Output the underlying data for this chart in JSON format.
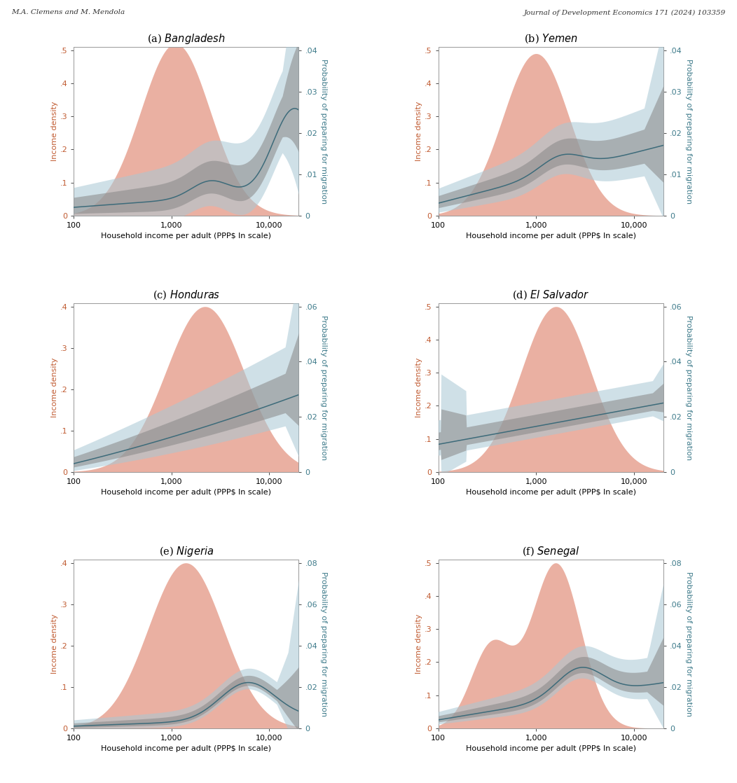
{
  "header_left": "M.A. Clemens and M. Mendola",
  "header_right": "Journal of Development Economics 171 (2024) 103359",
  "panels": [
    {
      "label": "(a)",
      "country": "Bangladesh",
      "yleft_max": 0.5,
      "yright_max": 0.04,
      "yleft_ticks": [
        0,
        0.1,
        0.2,
        0.3,
        0.4,
        0.5
      ],
      "yright_ticks": [
        0,
        0.01,
        0.02,
        0.03,
        0.04
      ],
      "density_shape": "bangladesh",
      "prob_shape": "bangladesh"
    },
    {
      "label": "(b)",
      "country": "Yemen",
      "yleft_max": 0.5,
      "yright_max": 0.04,
      "yleft_ticks": [
        0,
        0.1,
        0.2,
        0.3,
        0.4,
        0.5
      ],
      "yright_ticks": [
        0,
        0.01,
        0.02,
        0.03,
        0.04
      ],
      "density_shape": "yemen",
      "prob_shape": "yemen"
    },
    {
      "label": "(c)",
      "country": "Honduras",
      "yleft_max": 0.4,
      "yright_max": 0.06,
      "yleft_ticks": [
        0,
        0.1,
        0.2,
        0.3,
        0.4
      ],
      "yright_ticks": [
        0,
        0.02,
        0.04,
        0.06
      ],
      "density_shape": "honduras",
      "prob_shape": "honduras"
    },
    {
      "label": "(d)",
      "country": "El Salvador",
      "yleft_max": 0.5,
      "yright_max": 0.06,
      "yleft_ticks": [
        0,
        0.1,
        0.2,
        0.3,
        0.4,
        0.5
      ],
      "yright_ticks": [
        0,
        0.02,
        0.04,
        0.06
      ],
      "density_shape": "elsalvador",
      "prob_shape": "elsalvador"
    },
    {
      "label": "(e)",
      "country": "Nigeria",
      "yleft_max": 0.4,
      "yright_max": 0.08,
      "yleft_ticks": [
        0,
        0.1,
        0.2,
        0.3,
        0.4
      ],
      "yright_ticks": [
        0,
        0.02,
        0.04,
        0.06,
        0.08
      ],
      "density_shape": "nigeria",
      "prob_shape": "nigeria"
    },
    {
      "label": "(f)",
      "country": "Senegal",
      "yleft_max": 0.5,
      "yright_max": 0.08,
      "yleft_ticks": [
        0,
        0.1,
        0.2,
        0.3,
        0.4,
        0.5
      ],
      "yright_ticks": [
        0,
        0.02,
        0.04,
        0.06,
        0.08
      ],
      "density_shape": "senegal",
      "prob_shape": "senegal"
    }
  ],
  "xlabel": "Household income per adult (PPP$ ln scale)",
  "ylabel_left": "Income density",
  "ylabel_right": "Probability of preparing for migration",
  "xmin": 100,
  "xmax": 20000,
  "xticks": [
    100,
    1000,
    10000
  ],
  "xticklabels": [
    "100",
    "1,000",
    "10,000"
  ],
  "density_color": "#e8a898",
  "density_alpha": 0.9,
  "prob_line_color": "#3d6b7a",
  "prob_band_color": "#a8c8d5",
  "prob_band_alpha": 0.55,
  "prob_ci_color": "#888888",
  "prob_ci_alpha": 0.55,
  "left_label_color": "#c05a30",
  "right_label_color": "#3d7a8a",
  "background_color": "#ffffff",
  "fig_width": 10.52,
  "fig_height": 11.18
}
